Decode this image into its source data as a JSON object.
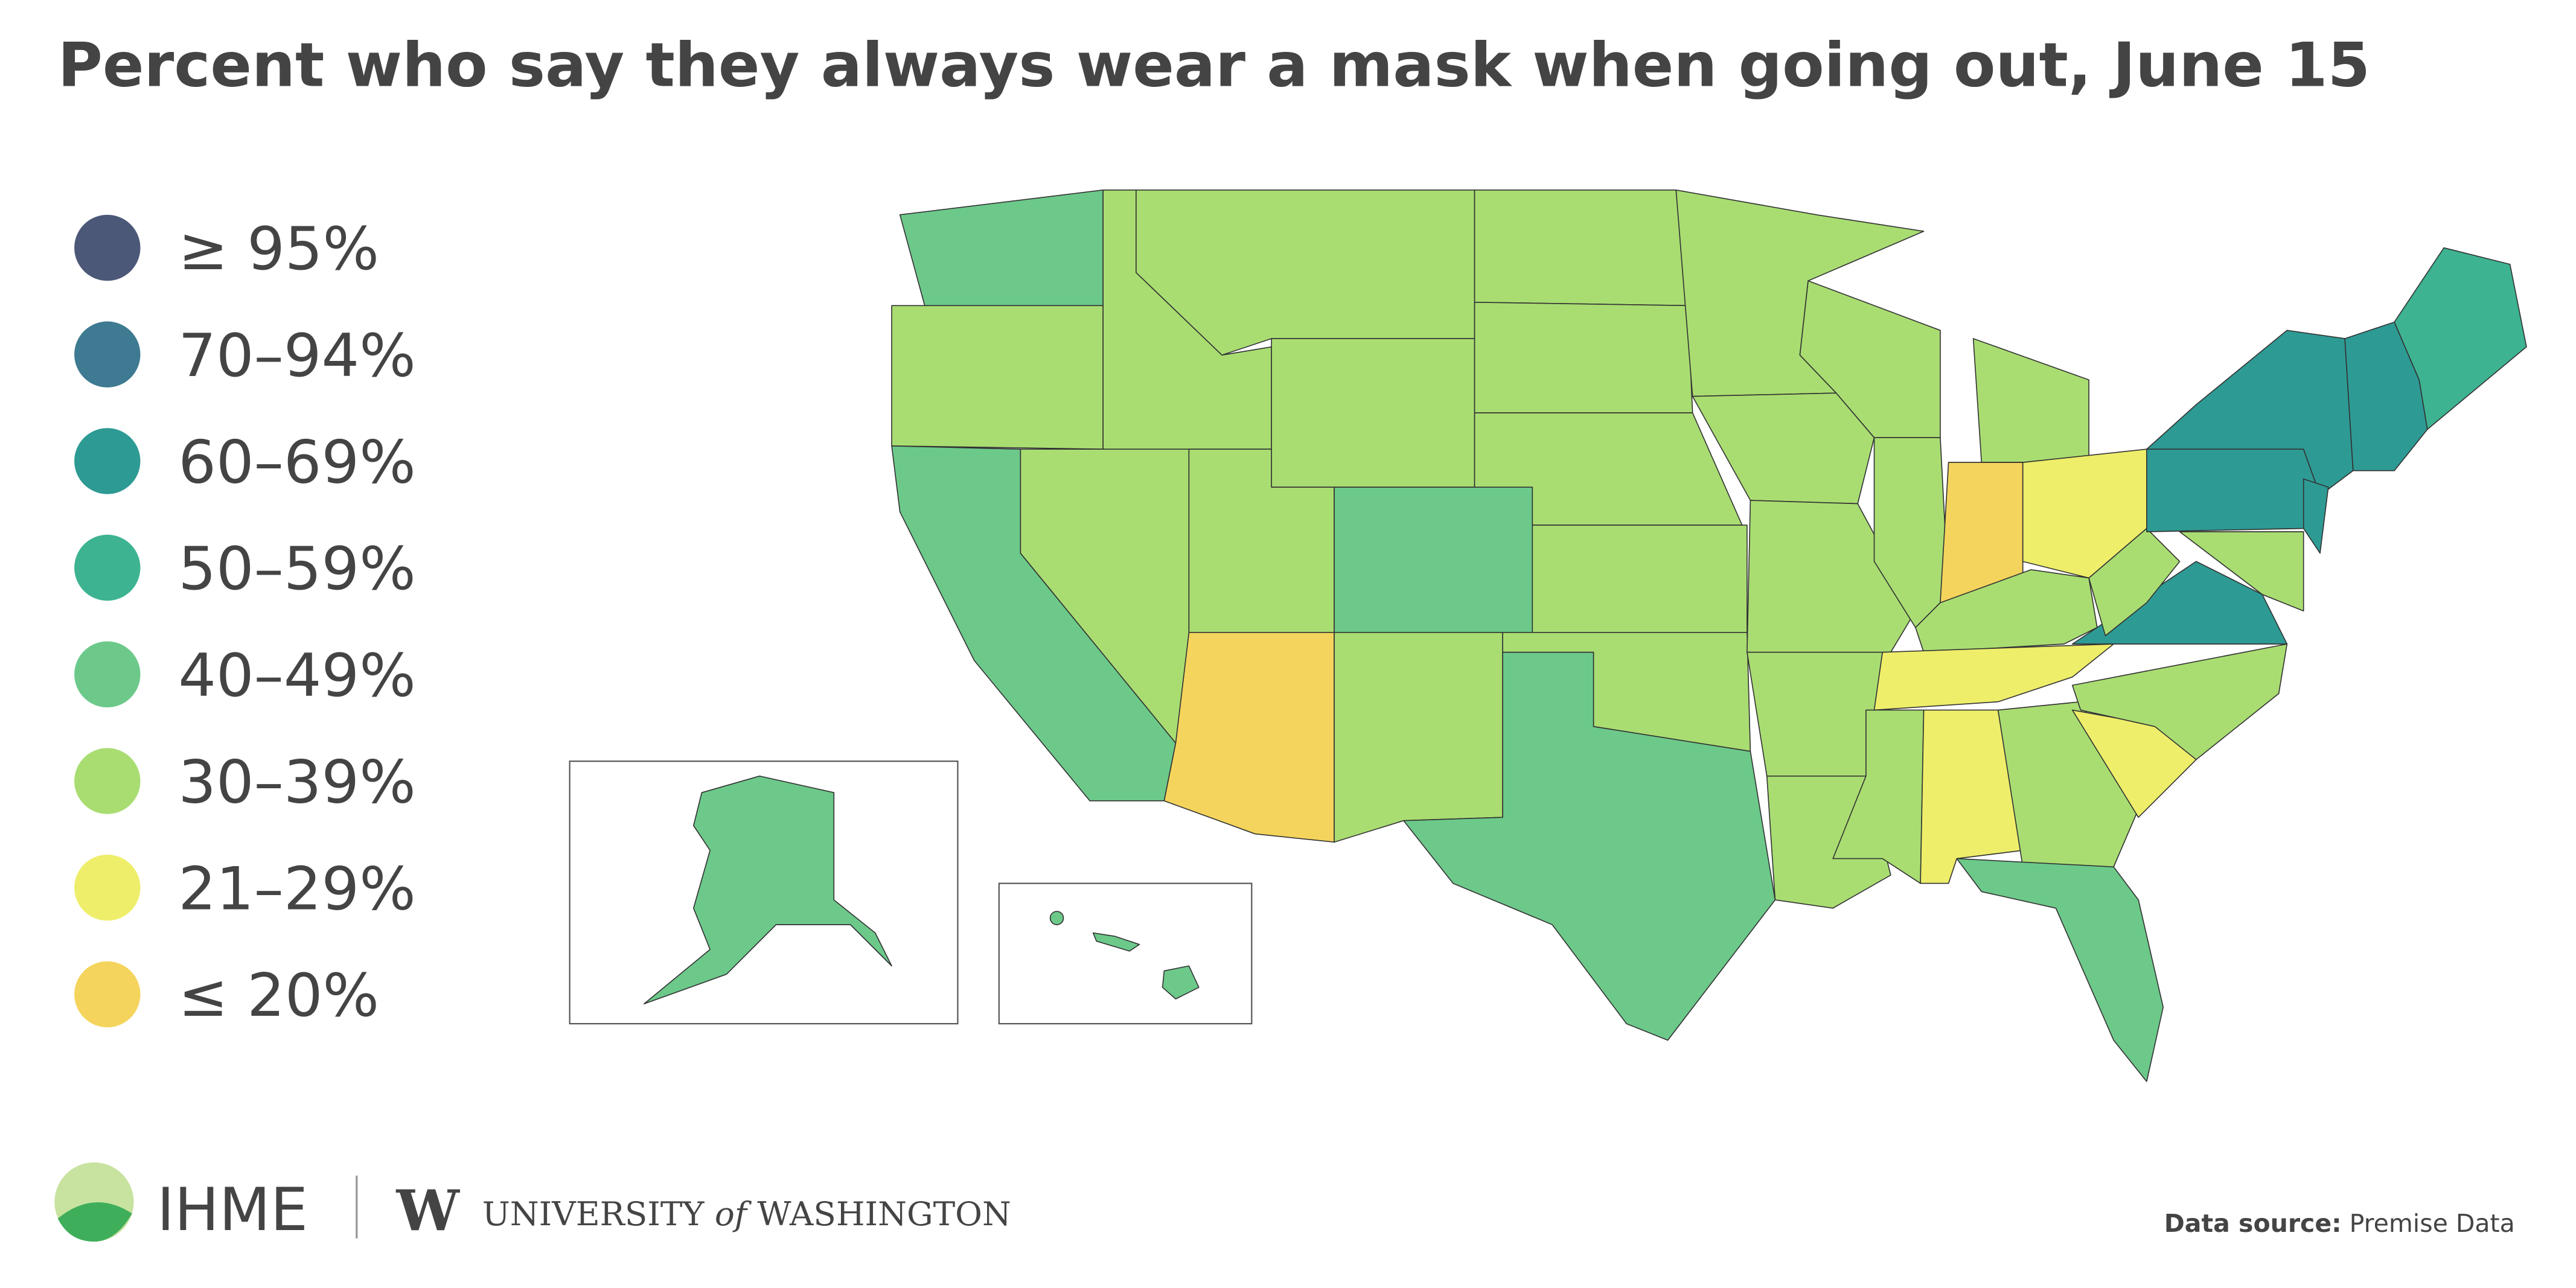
{
  "header": {
    "title": "Percent who say they always wear a mask when going out, June 15"
  },
  "legend": {
    "items": [
      {
        "label": "≥ 95%",
        "color": "#4b5878"
      },
      {
        "label": "70–94%",
        "color": "#3e7a91"
      },
      {
        "label": "60–69%",
        "color": "#2e9a94"
      },
      {
        "label": "50–59%",
        "color": "#3db392"
      },
      {
        "label": "40–49%",
        "color": "#6cc98a"
      },
      {
        "label": "30–39%",
        "color": "#a9dd72"
      },
      {
        "label": "21–29%",
        "color": "#eeee6a"
      },
      {
        "label": "≤ 20%",
        "color": "#f4d45c"
      }
    ]
  },
  "footer": {
    "logo": "IHME",
    "university_mark": "W",
    "university_1": "UNIVERSITY",
    "university_2": "of",
    "university_3": "WASHINGTON",
    "source_label": "Data source:",
    "source": "Premise Data"
  }
}
